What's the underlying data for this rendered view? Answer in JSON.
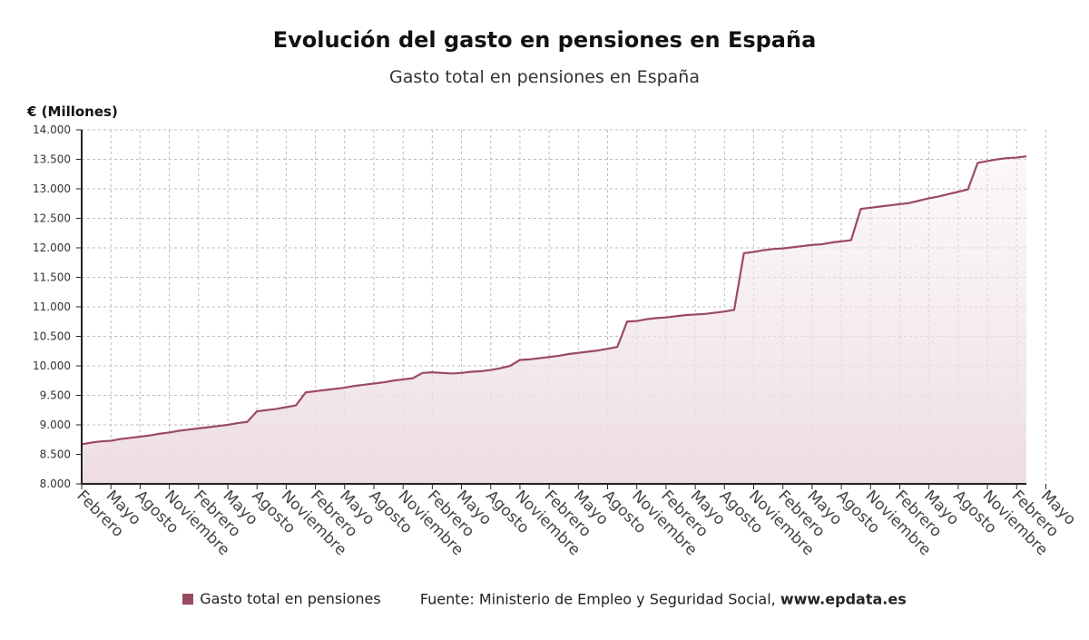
{
  "colors": {
    "line": "#9B4A60",
    "fill_top": "#F4EAEE",
    "fill_bottom": "#EDDDE3",
    "grid": "#bdbdbd",
    "axis": "#222222"
  },
  "chart_data": {
    "type": "area",
    "title": "Evolución del gasto en pensiones en España",
    "subtitle": "Gasto total en pensiones en España",
    "ylabel": "€ (Millones)",
    "xlabel": "",
    "ylim": [
      8000,
      14000
    ],
    "yticks": [
      8000,
      8500,
      9000,
      9500,
      10000,
      10500,
      11000,
      11500,
      12000,
      12500,
      13000,
      13500,
      14000
    ],
    "ytick_labels": [
      "8.000",
      "8.500",
      "9.000",
      "9.500",
      "10.000",
      "10.500",
      "11.000",
      "11.500",
      "12.000",
      "12.500",
      "13.000",
      "13.500",
      "14.000"
    ],
    "x_ticks": [
      "Febrero",
      "Mayo",
      "Agosto",
      "Noviembre",
      "Febrero",
      "Mayo",
      "Agosto",
      "Noviembre",
      "Febrero",
      "Mayo",
      "Agosto",
      "Noviembre",
      "Febrero",
      "Mayo",
      "Agosto",
      "Noviembre",
      "Febrero",
      "Mayo",
      "Agosto",
      "Noviembre",
      "Febrero",
      "Mayo",
      "Agosto",
      "Noviembre",
      "Febrero",
      "Mayo",
      "Agosto",
      "Noviembre",
      "Febrero",
      "Mayo",
      "Agosto",
      "Noviembre",
      "Febrero",
      "Mayo"
    ],
    "grid": true,
    "series": [
      {
        "name": "Gasto total en pensiones",
        "values": [
          8670,
          8700,
          8720,
          8730,
          8760,
          8780,
          8800,
          8820,
          8850,
          8870,
          8900,
          8920,
          8940,
          8960,
          8980,
          9000,
          9030,
          9050,
          9230,
          9250,
          9270,
          9300,
          9330,
          9550,
          9570,
          9590,
          9610,
          9630,
          9660,
          9680,
          9700,
          9720,
          9750,
          9770,
          9790,
          9880,
          9890,
          9880,
          9870,
          9880,
          9900,
          9910,
          9930,
          9960,
          10000,
          10100,
          10110,
          10130,
          10150,
          10170,
          10200,
          10220,
          10240,
          10260,
          10290,
          10320,
          10750,
          10760,
          10790,
          10810,
          10820,
          10840,
          10860,
          10870,
          10880,
          10900,
          10920,
          10950,
          11910,
          11930,
          11960,
          11980,
          11990,
          12010,
          12030,
          12050,
          12060,
          12090,
          12110,
          12130,
          12660,
          12680,
          12700,
          12720,
          12740,
          12760,
          12800,
          12840,
          12870,
          12910,
          12950,
          12990,
          13440,
          13470,
          13500,
          13520,
          13530,
          13550
        ]
      }
    ],
    "legend": "bottom"
  },
  "footer": {
    "legend_label": "Gasto total en pensiones",
    "source_prefix": "Fuente: Ministerio de Empleo y Seguridad Social, ",
    "source_site": "www.epdata.es"
  }
}
